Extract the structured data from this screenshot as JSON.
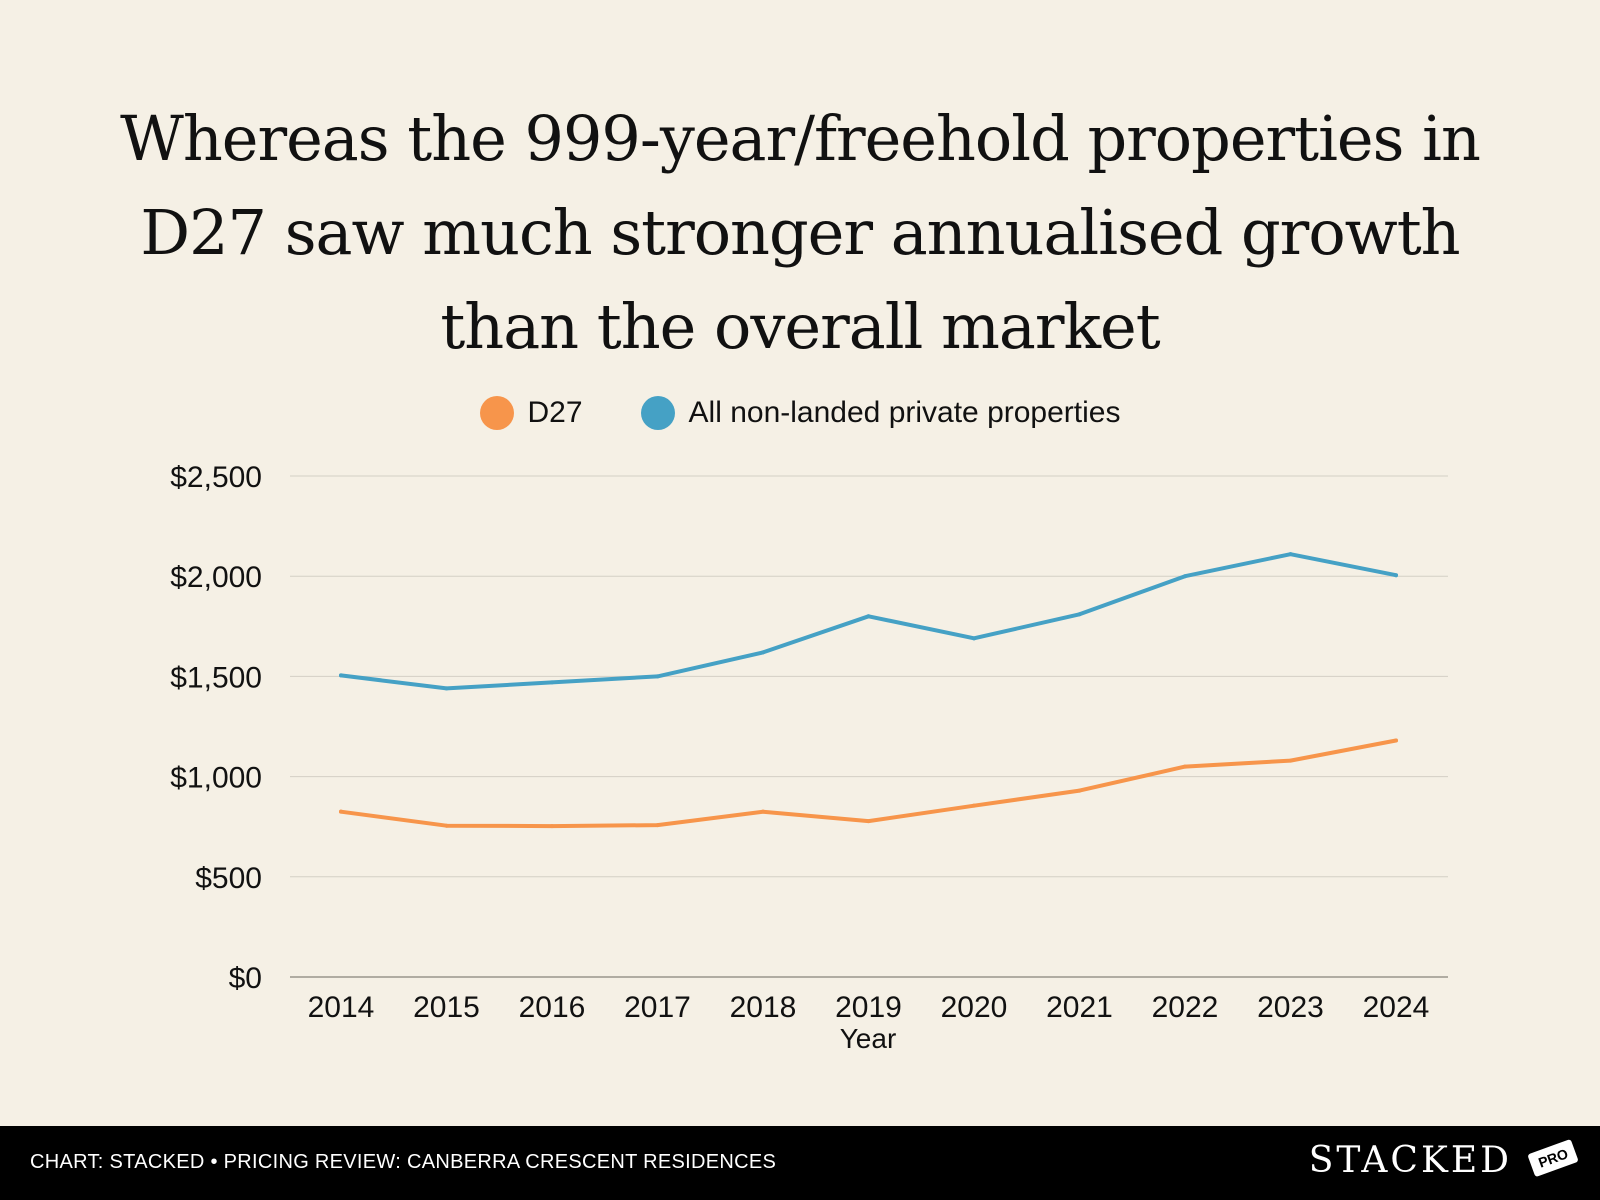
{
  "chart_data": {
    "type": "line",
    "title_lines": [
      "Whereas the 999-year/freehold properties in",
      "D27 saw much stronger annualised growth",
      "than the overall market"
    ],
    "xlabel": "Year",
    "ylabel": "",
    "ylim": [
      0,
      2500
    ],
    "yticks": [
      0,
      500,
      1000,
      1500,
      2000,
      2500
    ],
    "ytick_labels": [
      "$0",
      "$500",
      "$1,000",
      "$1,500",
      "$2,000",
      "$2,500"
    ],
    "categories": [
      "2014",
      "2015",
      "2016",
      "2017",
      "2018",
      "2019",
      "2020",
      "2021",
      "2022",
      "2023",
      "2024"
    ],
    "grid": true,
    "legend_position": "top-center",
    "series": [
      {
        "name": "D27",
        "color": "#f7954b",
        "values": [
          825,
          755,
          753,
          758,
          825,
          778,
          855,
          930,
          1050,
          1080,
          1180
        ]
      },
      {
        "name": "All non-landed private properties",
        "color": "#45a1c5",
        "values": [
          1505,
          1440,
          1470,
          1500,
          1620,
          1800,
          1690,
          1810,
          2000,
          2110,
          2005
        ]
      }
    ]
  },
  "footer": {
    "source": "CHART: STACKED • PRICING REVIEW: CANBERRA CRESCENT RESIDENCES",
    "logo_text": "STACKED",
    "logo_badge": "PRO"
  }
}
